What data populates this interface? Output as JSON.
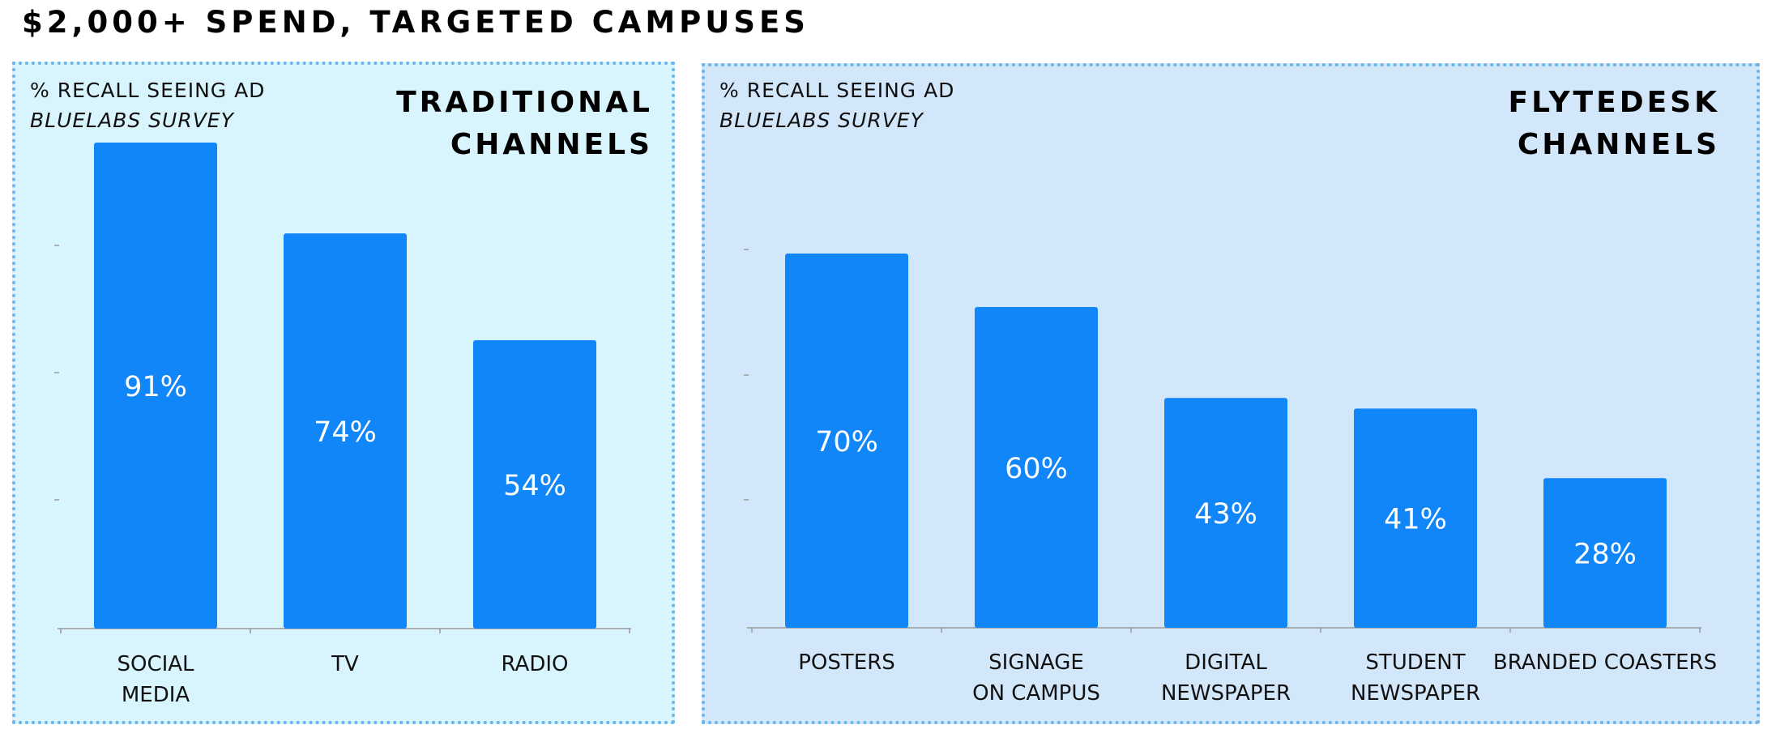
{
  "title": "$2,000+ SPEND, TARGETED CAMPUSES",
  "colors": {
    "bar": "#1186f8",
    "traditional_bg": "#d8f4fd",
    "flytedesk_bg": "#d3e7fb",
    "border": "#6cb4e8"
  },
  "chart_data": [
    {
      "type": "bar",
      "heading": [
        "TRADITIONAL",
        "CHANNELS"
      ],
      "ylabel": "% RECALL SEEING AD",
      "source": "BLUELABS SURVEY",
      "categories": [
        [
          "SOCIAL",
          "MEDIA"
        ],
        [
          "TV"
        ],
        [
          "RADIO"
        ]
      ],
      "values": [
        91,
        74,
        54
      ],
      "value_labels": [
        "91%",
        "74%",
        "54%"
      ],
      "ylim": [
        0,
        100
      ]
    },
    {
      "type": "bar",
      "heading": [
        "FLYTEDESK",
        "CHANNELS"
      ],
      "ylabel": "% RECALL SEEING AD",
      "source": "BLUELABS SURVEY",
      "categories": [
        [
          "POSTERS"
        ],
        [
          "SIGNAGE",
          "ON CAMPUS"
        ],
        [
          "DIGITAL",
          "NEWSPAPER"
        ],
        [
          "STUDENT",
          "NEWSPAPER"
        ],
        [
          "BRANDED COASTERS"
        ]
      ],
      "values": [
        70,
        60,
        43,
        41,
        28
      ],
      "value_labels": [
        "70%",
        "60%",
        "43%",
        "41%",
        "28%"
      ],
      "ylim": [
        0,
        100
      ]
    }
  ]
}
